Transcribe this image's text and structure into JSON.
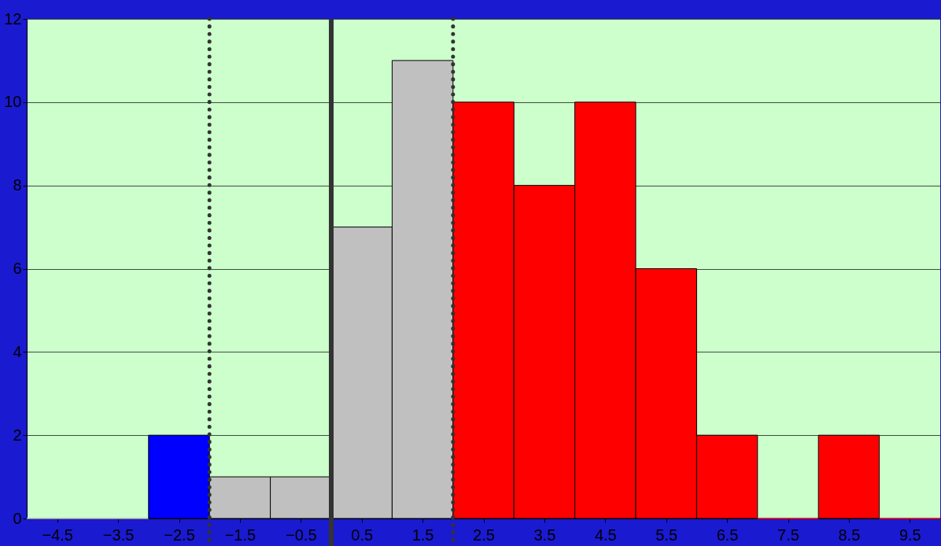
{
  "chart_data": {
    "type": "histogram",
    "bins": [
      -5,
      -4,
      -3,
      -2,
      -1,
      0,
      1,
      2,
      3,
      4,
      5,
      6,
      7,
      8,
      9,
      10
    ],
    "values": [
      0,
      0,
      2,
      1,
      1,
      7,
      11,
      10,
      8,
      10,
      6,
      2,
      0,
      2,
      0
    ],
    "colors": [
      "#c0c0c0",
      "#c0c0c0",
      "#0000ff",
      "#c0c0c0",
      "#c0c0c0",
      "#c0c0c0",
      "#c0c0c0",
      "#ff0000",
      "#ff0000",
      "#ff0000",
      "#ff0000",
      "#ff0000",
      "#ff0000",
      "#ff0000",
      "#ff0000"
    ],
    "xlim": [
      -5,
      10
    ],
    "xticks": [
      -4.5,
      -3.5,
      -2.5,
      -1.5,
      -0.5,
      0.5,
      1.5,
      2.5,
      3.5,
      4.5,
      5.5,
      6.5,
      7.5,
      8.5,
      9.5
    ],
    "ylim": [
      0,
      12
    ],
    "yticks": [
      0,
      2,
      4,
      6,
      8,
      10,
      12
    ],
    "grid": "y",
    "ref_lines": [
      {
        "axis": "x",
        "value": -2,
        "color": "#333333",
        "line_style": "dotted"
      },
      {
        "axis": "x",
        "value": 0,
        "color": "#333333",
        "line_style": "solid"
      },
      {
        "axis": "x",
        "value": 2,
        "color": "#333333",
        "line_style": "dotted"
      }
    ]
  }
}
